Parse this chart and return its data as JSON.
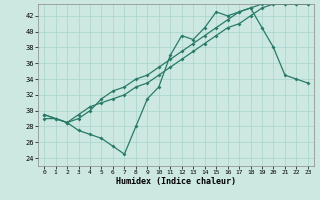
{
  "xlabel": "Humidex (Indice chaleur)",
  "bg_color": "#cce8e0",
  "line_color": "#2a7a6a",
  "grid_color": "#a8d4cc",
  "xlim": [
    -0.5,
    23.5
  ],
  "ylim": [
    23.0,
    43.5
  ],
  "yticks": [
    24,
    26,
    28,
    30,
    32,
    34,
    36,
    38,
    40,
    42
  ],
  "xticks": [
    0,
    1,
    2,
    3,
    4,
    5,
    6,
    7,
    8,
    9,
    10,
    11,
    12,
    13,
    14,
    15,
    16,
    17,
    18,
    19,
    20,
    21,
    22,
    23
  ],
  "line1_x": [
    0,
    1,
    2,
    3,
    4,
    5,
    6,
    7,
    8,
    9,
    10,
    11,
    12,
    13,
    14,
    15,
    16,
    17,
    18,
    19,
    20,
    21,
    22,
    23
  ],
  "line1_y": [
    29.5,
    29.0,
    28.5,
    27.5,
    27.0,
    26.5,
    25.5,
    24.5,
    28.0,
    31.5,
    33.0,
    37.0,
    39.5,
    39.0,
    40.5,
    42.5,
    42.0,
    42.5,
    43.0,
    40.5,
    38.0,
    34.5,
    34.0,
    33.5
  ],
  "line2_x": [
    0,
    2,
    3,
    4,
    5,
    6,
    7,
    8,
    9,
    10,
    11,
    12,
    13,
    14,
    15,
    16,
    17,
    18,
    19,
    20,
    21,
    22,
    23
  ],
  "line2_y": [
    29.5,
    28.5,
    29.5,
    30.5,
    31.0,
    31.5,
    32.0,
    33.0,
    33.5,
    34.5,
    35.5,
    36.5,
    37.5,
    38.5,
    39.5,
    40.5,
    41.0,
    42.0,
    43.0,
    43.5,
    43.5,
    43.5,
    43.5
  ],
  "line3_x": [
    0,
    1,
    2,
    3,
    4,
    5,
    6,
    7,
    8,
    9,
    10,
    11,
    12,
    13,
    14,
    15,
    16,
    17,
    18,
    19,
    20,
    21,
    22,
    23
  ],
  "line3_y": [
    29.0,
    29.0,
    28.5,
    29.0,
    30.0,
    31.5,
    32.5,
    33.0,
    34.0,
    34.5,
    35.5,
    36.5,
    37.5,
    38.5,
    39.5,
    40.5,
    41.5,
    42.5,
    43.0,
    43.5,
    43.5,
    43.5,
    43.5,
    43.5
  ]
}
